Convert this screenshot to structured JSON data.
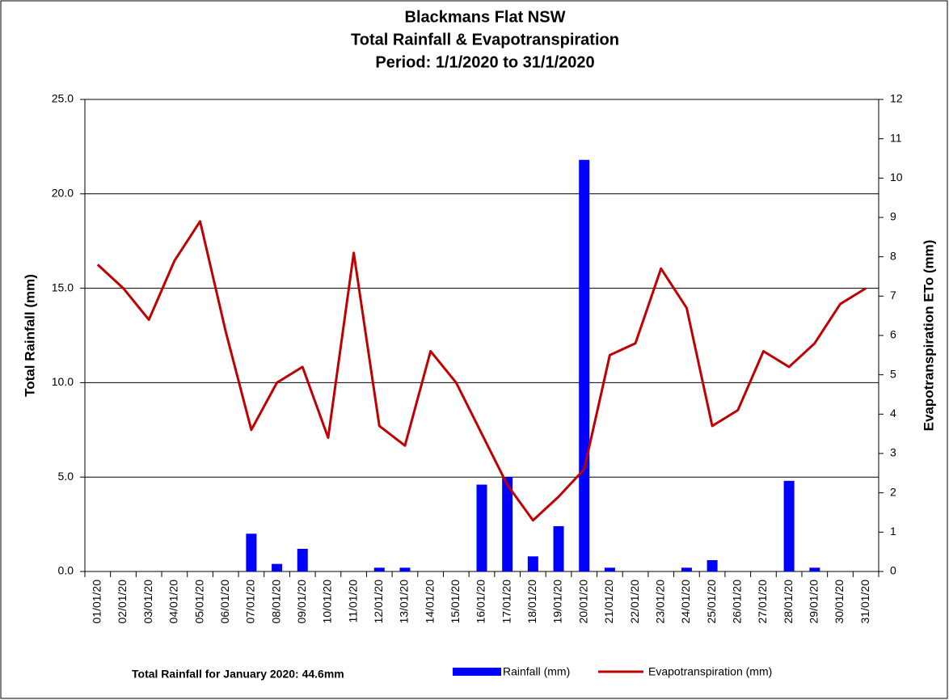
{
  "chart_data": {
    "type": "bar-line",
    "title": [
      "Blackmans Flat NSW",
      "Total Rainfall & Evapotranspiration",
      "Period: 1/1/2020 to 31/1/2020"
    ],
    "y_label": "Total Rainfall (mm)",
    "y2_label": "Evapotranspiration ETo (mm)",
    "note": "Total Rainfall for January 2020: 44.6mm",
    "categories": [
      "01/01/20",
      "02/01/20",
      "03/01/20",
      "04/01/20",
      "05/01/20",
      "06/01/20",
      "07/01/20",
      "08/01/20",
      "09/01/20",
      "10/01/20",
      "11/01/20",
      "12/01/20",
      "13/01/20",
      "14/01/20",
      "15/01/20",
      "16/01/20",
      "17/01/20",
      "18/01/20",
      "19/01/20",
      "20/01/20",
      "21/01/20",
      "22/01/20",
      "23/01/20",
      "24/01/20",
      "25/01/20",
      "26/01/20",
      "27/01/20",
      "28/01/20",
      "29/01/20",
      "30/01/20",
      "31/01/20"
    ],
    "series": [
      {
        "name": "Rainfall (mm)",
        "type": "bar",
        "color": "#0000ff",
        "axis": "y",
        "values": [
          0,
          0,
          0,
          0,
          0,
          0,
          2.0,
          0.4,
          1.2,
          0,
          0,
          0.2,
          0.2,
          0,
          0,
          4.6,
          5.0,
          0.8,
          2.4,
          21.8,
          0.2,
          0,
          0,
          0.2,
          0.6,
          0,
          0,
          4.8,
          0.2,
          0,
          0
        ]
      },
      {
        "name": "Evapotranspiration (mm)",
        "type": "line",
        "color": "#c00000",
        "axis": "y2",
        "values": [
          7.8,
          7.2,
          6.4,
          7.9,
          8.9,
          6.1,
          3.6,
          4.8,
          5.2,
          3.4,
          8.1,
          3.7,
          3.2,
          5.6,
          4.8,
          3.5,
          2.2,
          1.3,
          1.9,
          2.6,
          5.5,
          5.8,
          7.7,
          6.7,
          3.7,
          4.1,
          5.6,
          5.2,
          5.8,
          6.8,
          7.2
        ]
      }
    ],
    "ylim": [
      0,
      25
    ],
    "yticks": [
      {
        "value": 0,
        "label": "0.0"
      },
      {
        "value": 5,
        "label": "5.0"
      },
      {
        "value": 10,
        "label": "10.0"
      },
      {
        "value": 15,
        "label": "15.0"
      },
      {
        "value": 20,
        "label": "20.0"
      },
      {
        "value": 25,
        "label": "25.0"
      }
    ],
    "y2lim": [
      0,
      12
    ],
    "y2ticks": [
      0,
      1,
      2,
      3,
      4,
      5,
      6,
      7,
      8,
      9,
      10,
      11,
      12
    ],
    "grid": true
  }
}
